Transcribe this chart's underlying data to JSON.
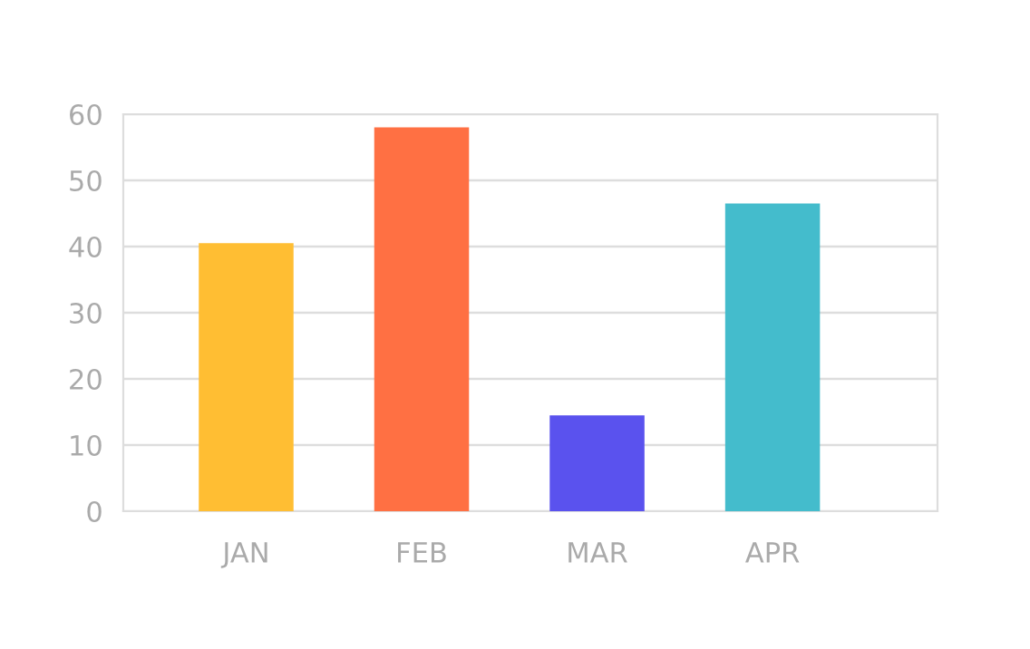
{
  "chart_data": {
    "type": "bar",
    "categories": [
      "JAN",
      "FEB",
      "MAR",
      "APR"
    ],
    "values": [
      40.5,
      58,
      14.5,
      46.5
    ],
    "colors": [
      "#ffbe33",
      "#ff7043",
      "#5a52ee",
      "#44bccc"
    ],
    "ylim": [
      0,
      60
    ],
    "yticks": [
      0,
      10,
      20,
      30,
      40,
      50,
      60
    ],
    "grid": "y",
    "legend": false
  }
}
